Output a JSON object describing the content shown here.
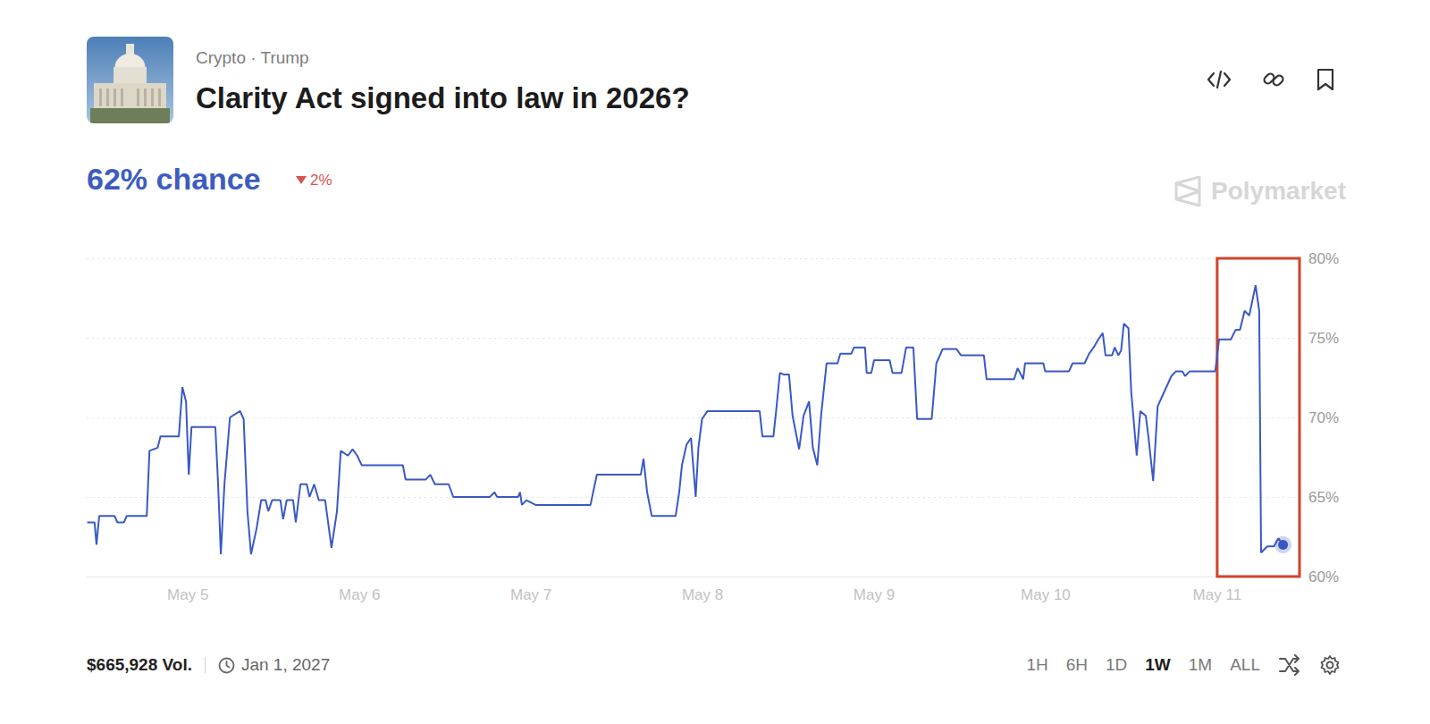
{
  "page": {
    "breadcrumb": "Crypto · Trump",
    "current": "62% chance",
    "change": "2%",
    "change_direction": "down",
    "source": "Polymarket",
    "volume": "$665,928 Vol.",
    "end_date": "Jan 1, 2027",
    "ranges": [
      "1H",
      "6H",
      "1D",
      "1W",
      "1M",
      "ALL"
    ],
    "active_range": "1W"
  },
  "chart_data": {
    "type": "line",
    "title": "Clarity Act signed into law in 2026?",
    "color": "#3a59c4",
    "x": [
      4.413,
      4.456,
      4.467,
      4.483,
      4.573,
      4.589,
      4.627,
      4.643,
      4.76,
      4.776,
      4.824,
      4.84,
      4.947,
      4.968,
      4.989,
      5.005,
      5.021,
      5.16,
      5.176,
      5.192,
      5.213,
      5.245,
      5.304,
      5.325,
      5.347,
      5.368,
      5.4,
      5.427,
      5.453,
      5.469,
      5.491,
      5.539,
      5.555,
      5.576,
      5.613,
      5.629,
      5.656,
      5.693,
      5.709,
      5.736,
      5.763,
      5.8,
      5.837,
      5.869,
      5.891,
      5.933,
      5.96,
      5.987,
      6.013,
      6.253,
      6.269,
      6.387,
      6.413,
      6.44,
      6.52,
      6.547,
      6.76,
      6.787,
      6.803,
      6.925,
      6.936,
      6.947,
      6.973,
      7.027,
      7.347,
      7.384,
      7.64,
      7.656,
      7.677,
      7.704,
      7.843,
      7.864,
      7.88,
      7.907,
      7.933,
      7.96,
      7.976,
      7.997,
      8.029,
      8.333,
      8.349,
      8.413,
      8.429,
      8.451,
      8.472,
      8.504,
      8.525,
      8.563,
      8.589,
      8.621,
      8.643,
      8.669,
      8.691,
      8.723,
      8.787,
      8.803,
      8.867,
      8.883,
      8.947,
      8.957,
      8.984,
      9.0,
      9.091,
      9.107,
      9.16,
      9.187,
      9.229,
      9.251,
      9.336,
      9.363,
      9.4,
      9.48,
      9.507,
      9.64,
      9.656,
      9.816,
      9.837,
      9.869,
      9.88,
      9.987,
      9.997,
      10.136,
      10.157,
      10.227,
      10.253,
      10.28,
      10.307,
      10.333,
      10.349,
      10.387,
      10.403,
      10.424,
      10.44,
      10.456,
      10.483,
      10.499,
      10.531,
      10.552,
      10.584,
      10.6,
      10.627,
      10.653,
      10.691,
      10.733,
      10.76,
      10.797,
      10.813,
      10.84,
      10.989,
      11.011,
      11.08,
      11.107,
      11.133,
      11.16,
      11.187,
      11.224,
      11.245,
      11.256,
      11.293,
      11.331,
      11.357,
      11.384
    ],
    "values": [
      63.4,
      63.4,
      62.0,
      63.8,
      63.8,
      63.4,
      63.4,
      63.8,
      63.8,
      67.9,
      68.1,
      68.8,
      68.8,
      71.9,
      71.0,
      66.4,
      69.4,
      69.4,
      65.8,
      61.4,
      65.8,
      70.0,
      70.4,
      69.9,
      64.1,
      61.4,
      63.0,
      64.8,
      64.8,
      64.1,
      64.8,
      64.8,
      63.6,
      64.8,
      64.8,
      63.4,
      65.8,
      65.8,
      65.0,
      65.8,
      64.8,
      64.8,
      61.8,
      64.1,
      67.9,
      67.6,
      68.0,
      67.6,
      67.0,
      67.0,
      66.1,
      66.1,
      66.4,
      65.8,
      65.8,
      65.0,
      65.0,
      65.3,
      65.0,
      65.0,
      65.3,
      64.5,
      64.8,
      64.5,
      64.5,
      66.4,
      66.4,
      67.4,
      65.3,
      63.8,
      63.8,
      65.3,
      67.0,
      68.3,
      68.7,
      65.0,
      68.1,
      69.9,
      70.4,
      70.4,
      68.8,
      68.8,
      70.4,
      72.8,
      72.7,
      72.7,
      70.1,
      68.0,
      70.1,
      71.0,
      68.1,
      67.0,
      70.1,
      73.4,
      73.4,
      74.0,
      74.0,
      74.4,
      74.4,
      72.8,
      72.8,
      73.6,
      73.6,
      72.8,
      72.8,
      74.4,
      74.4,
      69.9,
      69.9,
      73.4,
      74.3,
      74.3,
      73.9,
      73.9,
      72.4,
      72.4,
      73.1,
      72.4,
      73.4,
      73.4,
      72.9,
      72.9,
      73.4,
      73.4,
      74.0,
      74.4,
      74.9,
      75.3,
      73.9,
      73.9,
      74.4,
      73.9,
      74.2,
      75.9,
      75.6,
      71.6,
      67.6,
      70.4,
      70.1,
      68.7,
      66.0,
      70.7,
      71.6,
      72.6,
      72.9,
      72.9,
      72.6,
      72.9,
      72.9,
      74.9,
      74.9,
      75.5,
      75.5,
      76.7,
      76.4,
      78.3,
      76.7,
      61.5,
      61.9,
      61.9,
      62.4,
      62.0
    ],
    "xlim": [
      4.41,
      11.48
    ],
    "xticks": [
      {
        "value": 5,
        "label": "May 5"
      },
      {
        "value": 6,
        "label": "May 6"
      },
      {
        "value": 7,
        "label": "May 7"
      },
      {
        "value": 8,
        "label": "May 8"
      },
      {
        "value": 9,
        "label": "May 9"
      },
      {
        "value": 10,
        "label": "May 10"
      },
      {
        "value": 11,
        "label": "May 11"
      }
    ],
    "ylim": [
      60,
      80
    ],
    "yticks": [
      {
        "value": 60,
        "label": "60%"
      },
      {
        "value": 65,
        "label": "65%"
      },
      {
        "value": 70,
        "label": "70%"
      },
      {
        "value": 75,
        "label": "75%"
      },
      {
        "value": 80,
        "label": "80%"
      }
    ],
    "grid": true,
    "highlight": {
      "x": [
        11.0,
        11.48
      ],
      "color": "#d4412c"
    }
  }
}
